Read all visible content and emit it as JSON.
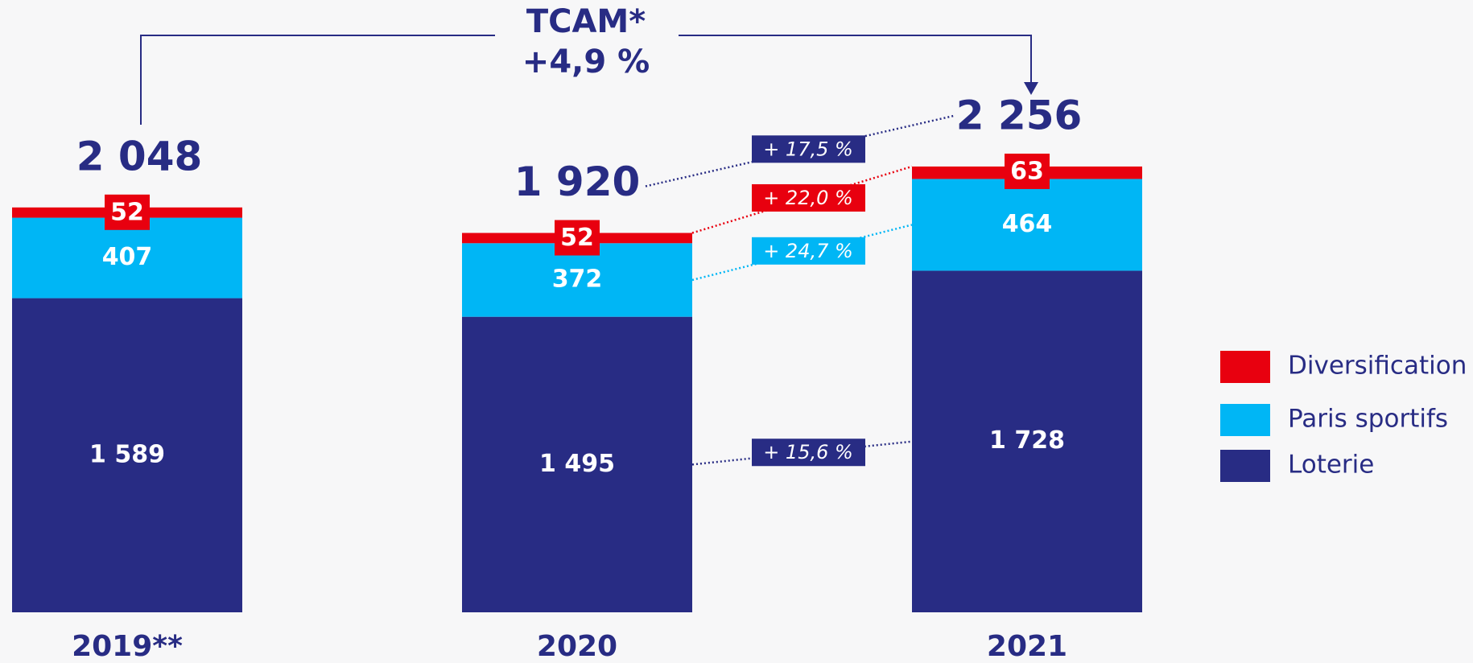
{
  "chart_data": {
    "type": "stacked_bar",
    "annotation_title": "TCAM*",
    "annotation_value": "+4,9 %",
    "categories": [
      "2019**",
      "2020",
      "2021"
    ],
    "series": [
      {
        "name": "Loterie",
        "color": "#282c84",
        "values": [
          1589,
          1495,
          1728
        ],
        "value_labels": [
          "1 589",
          "1 495",
          "1 728"
        ],
        "growth_label": "+ 15,6 %"
      },
      {
        "name": "Paris sportifs",
        "color": "#00b6f5",
        "values": [
          407,
          372,
          464
        ],
        "growth_label": "+ 24,7 %"
      },
      {
        "name": "Diversification",
        "color": "#e8000f",
        "values": [
          52,
          52,
          63
        ],
        "growth_label": "+ 22,0 %"
      }
    ],
    "totals": [
      2048,
      1920,
      2256
    ],
    "total_labels": [
      "2 048",
      "1 920",
      "2 256"
    ],
    "total_growth_label": "+ 17,5 %",
    "total_growth_color": "#282c84",
    "legend": "right"
  }
}
